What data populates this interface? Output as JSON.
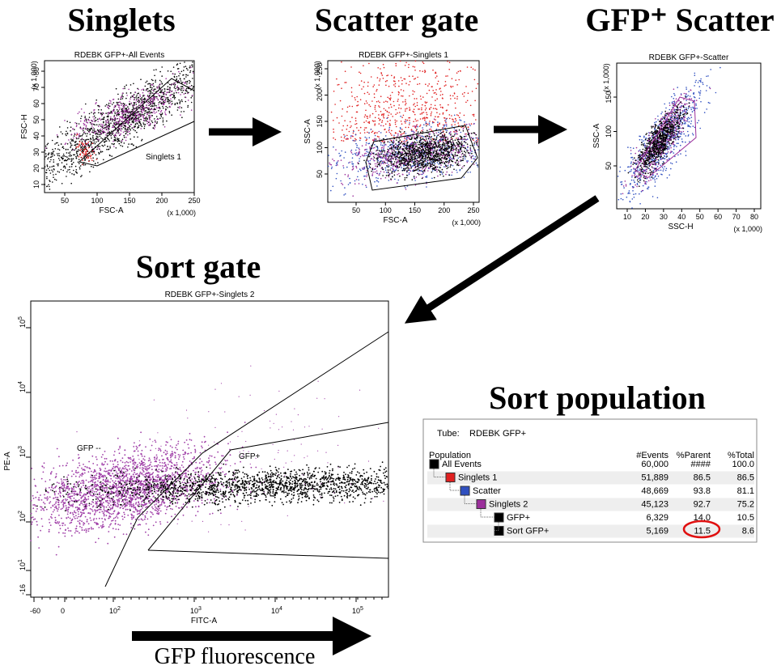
{
  "panels": [
    {
      "title": "Singlets",
      "plot_title": "RDEBK GFP+-All Events",
      "x_label": "FSC-A",
      "y_label": "FSC-H",
      "x_multiplier": "(x 1,000)",
      "y_multiplier": "(x 1,000)",
      "x_ticks": [
        "50",
        "100",
        "150",
        "200",
        "250"
      ],
      "y_ticks": [
        "10",
        "20",
        "30",
        "40",
        "50",
        "60",
        "70",
        "80"
      ],
      "gate_labels": [
        "Singlets 1"
      ]
    },
    {
      "title": "Scatter gate",
      "plot_title": "RDEBK GFP+-Singlets 1",
      "x_label": "FSC-A",
      "y_label": "SSC-A",
      "x_multiplier": "(x 1,000)",
      "y_multiplier": "(x 1,000)",
      "x_ticks": [
        "50",
        "100",
        "150",
        "200",
        "250"
      ],
      "y_ticks": [
        "50",
        "100",
        "150",
        "200",
        "250"
      ],
      "gate_labels": []
    },
    {
      "title": "GFP⁺ Scatter",
      "plot_title": "RDEBK GFP+-Scatter",
      "x_label": "SSC-H",
      "y_label": "SSC-A",
      "x_multiplier": "(x 1,000)",
      "y_multiplier": "(x 1,000)",
      "x_ticks": [
        "10",
        "20",
        "30",
        "40",
        "50",
        "60",
        "70",
        "80"
      ],
      "y_ticks": [
        "50",
        "100",
        "150"
      ],
      "gate_labels": []
    }
  ],
  "sort_gate": {
    "title": "Sort gate",
    "plot_title": "RDEBK GFP+-Singlets 2",
    "x_label": "FITC-A",
    "y_label": "PE-A",
    "x_ticks": [
      {
        "base": "-60"
      },
      {
        "base": "0"
      },
      {
        "base": "10",
        "exp": "2"
      },
      {
        "base": "10",
        "exp": "3"
      },
      {
        "base": "10",
        "exp": "4"
      },
      {
        "base": "10",
        "exp": "5"
      }
    ],
    "y_ticks": [
      {
        "base": "10",
        "exp": "5"
      },
      {
        "base": "10",
        "exp": "4"
      },
      {
        "base": "10",
        "exp": "3"
      },
      {
        "base": "10",
        "exp": "2"
      },
      {
        "base": "10",
        "exp": "1"
      },
      {
        "base": "-16"
      }
    ],
    "gate_labels": [
      "GFP --",
      "GFP+"
    ],
    "axis_caption": "GFP fluorescence"
  },
  "sort_population": {
    "title": "Sort population",
    "tube_label": "Tube:",
    "tube": "RDEBK GFP+",
    "columns": [
      "Population",
      "#Events",
      "%Parent",
      "%Total"
    ],
    "rows": [
      [
        "All Events",
        "60,000",
        "####",
        "100.0"
      ],
      [
        "Singlets 1",
        "51,889",
        "86.5",
        "86.5"
      ],
      [
        "Scatter",
        "48,669",
        "93.8",
        "81.1"
      ],
      [
        "Singlets 2",
        "45,123",
        "92.7",
        "75.2"
      ],
      [
        "GFP+",
        "6,329",
        "14.0",
        "10.5"
      ],
      [
        "Sort GFP+",
        "5,169",
        "11.5",
        "8.6"
      ]
    ]
  }
}
